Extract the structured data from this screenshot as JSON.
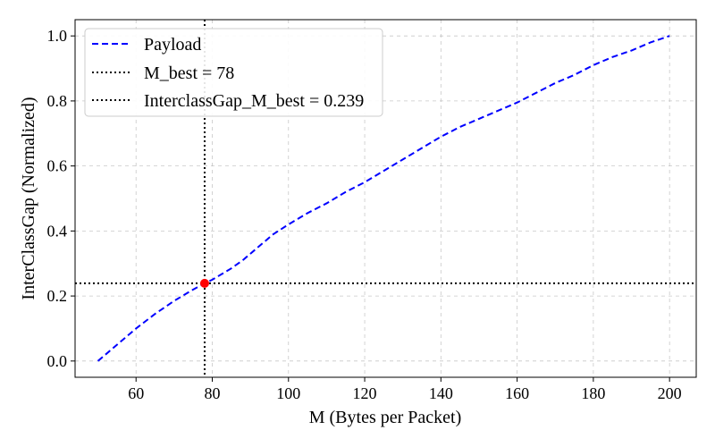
{
  "chart_data": {
    "type": "line",
    "title": "",
    "xlabel": "M (Bytes per Packet)",
    "ylabel": "InterClassGap (Normalized)",
    "xlim": [
      44,
      207
    ],
    "ylim": [
      -0.05,
      1.05
    ],
    "xticks": [
      60,
      80,
      100,
      120,
      140,
      160,
      180,
      200
    ],
    "yticks": [
      0.0,
      0.2,
      0.4,
      0.6,
      0.8,
      1.0
    ],
    "xtick_labels": [
      "60",
      "80",
      "100",
      "120",
      "140",
      "160",
      "180",
      "200"
    ],
    "ytick_labels": [
      "0.0",
      "0.2",
      "0.4",
      "0.6",
      "0.8",
      "1.0"
    ],
    "grid": true,
    "legend_position": "top-left",
    "series": [
      {
        "name": "Payload",
        "style": "dashed",
        "color": "#0000ff",
        "x": [
          50,
          55,
          60,
          65,
          70,
          75,
          78,
          80,
          85,
          88,
          92,
          96,
          100,
          105,
          110,
          115,
          120,
          125,
          130,
          135,
          140,
          145,
          150,
          155,
          160,
          165,
          170,
          175,
          180,
          185,
          190,
          195,
          200
        ],
        "y": [
          0.0,
          0.05,
          0.1,
          0.145,
          0.185,
          0.22,
          0.239,
          0.25,
          0.285,
          0.31,
          0.35,
          0.39,
          0.42,
          0.455,
          0.485,
          0.52,
          0.55,
          0.585,
          0.62,
          0.655,
          0.69,
          0.72,
          0.745,
          0.77,
          0.795,
          0.825,
          0.855,
          0.88,
          0.91,
          0.935,
          0.955,
          0.98,
          1.0
        ]
      }
    ],
    "reference_lines": [
      {
        "name": "M_best = 78",
        "orientation": "vertical",
        "value": 78,
        "style": "dotted",
        "color": "#000000"
      },
      {
        "name": "InterclassGap_M_best = 0.239",
        "orientation": "horizontal",
        "value": 0.239,
        "style": "dotted",
        "color": "#000000"
      }
    ],
    "highlight_point": {
      "x": 78,
      "y": 0.239,
      "color": "#ff0000"
    }
  }
}
